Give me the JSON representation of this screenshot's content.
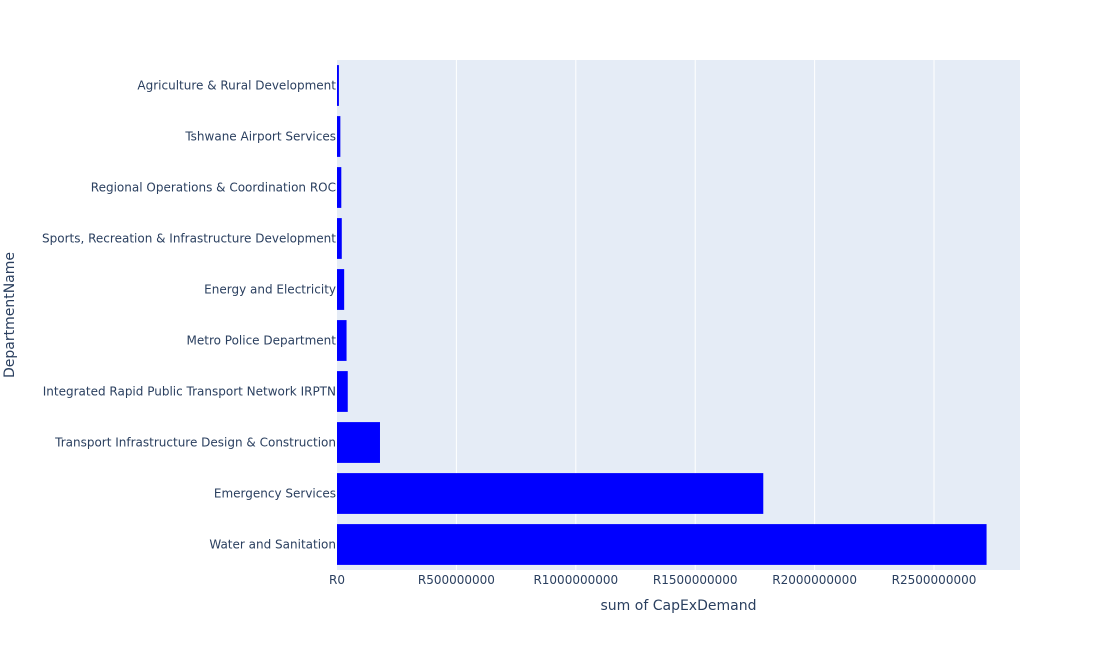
{
  "chart_data": {
    "type": "bar",
    "orientation": "horizontal",
    "title": "",
    "xlabel": "sum of CapExDemand",
    "ylabel": "DepartmentName",
    "categories": [
      "Agriculture & Rural Development",
      "Tshwane Airport Services",
      "Regional Operations & Coordination ROC",
      "Sports, Recreation & Infrastructure Development",
      "Energy and Electricity",
      "Metro Police Department",
      "Integrated Rapid Public Transport Network IRPTN",
      "Transport Infrastructure Design & Construction",
      "Emergency Services",
      "Water and Sanitation"
    ],
    "values": [
      8000000,
      14000000,
      18000000,
      20000000,
      30000000,
      40000000,
      45000000,
      180000000,
      1785000000,
      2720000000
    ],
    "xlim": [
      0,
      2860000000
    ],
    "x_ticks": [
      0,
      500000000,
      1000000000,
      1500000000,
      2000000000,
      2500000000
    ],
    "x_tick_labels": [
      "R0",
      "R500000000",
      "R1000000000",
      "R1500000000",
      "R2000000000",
      "R2500000000"
    ],
    "bar_color": "#0000ff",
    "plot_background": "#e5ecf6",
    "grid_color": "#ffffff",
    "text_color": "#2a3f5f",
    "grid": true,
    "legend": "none"
  }
}
